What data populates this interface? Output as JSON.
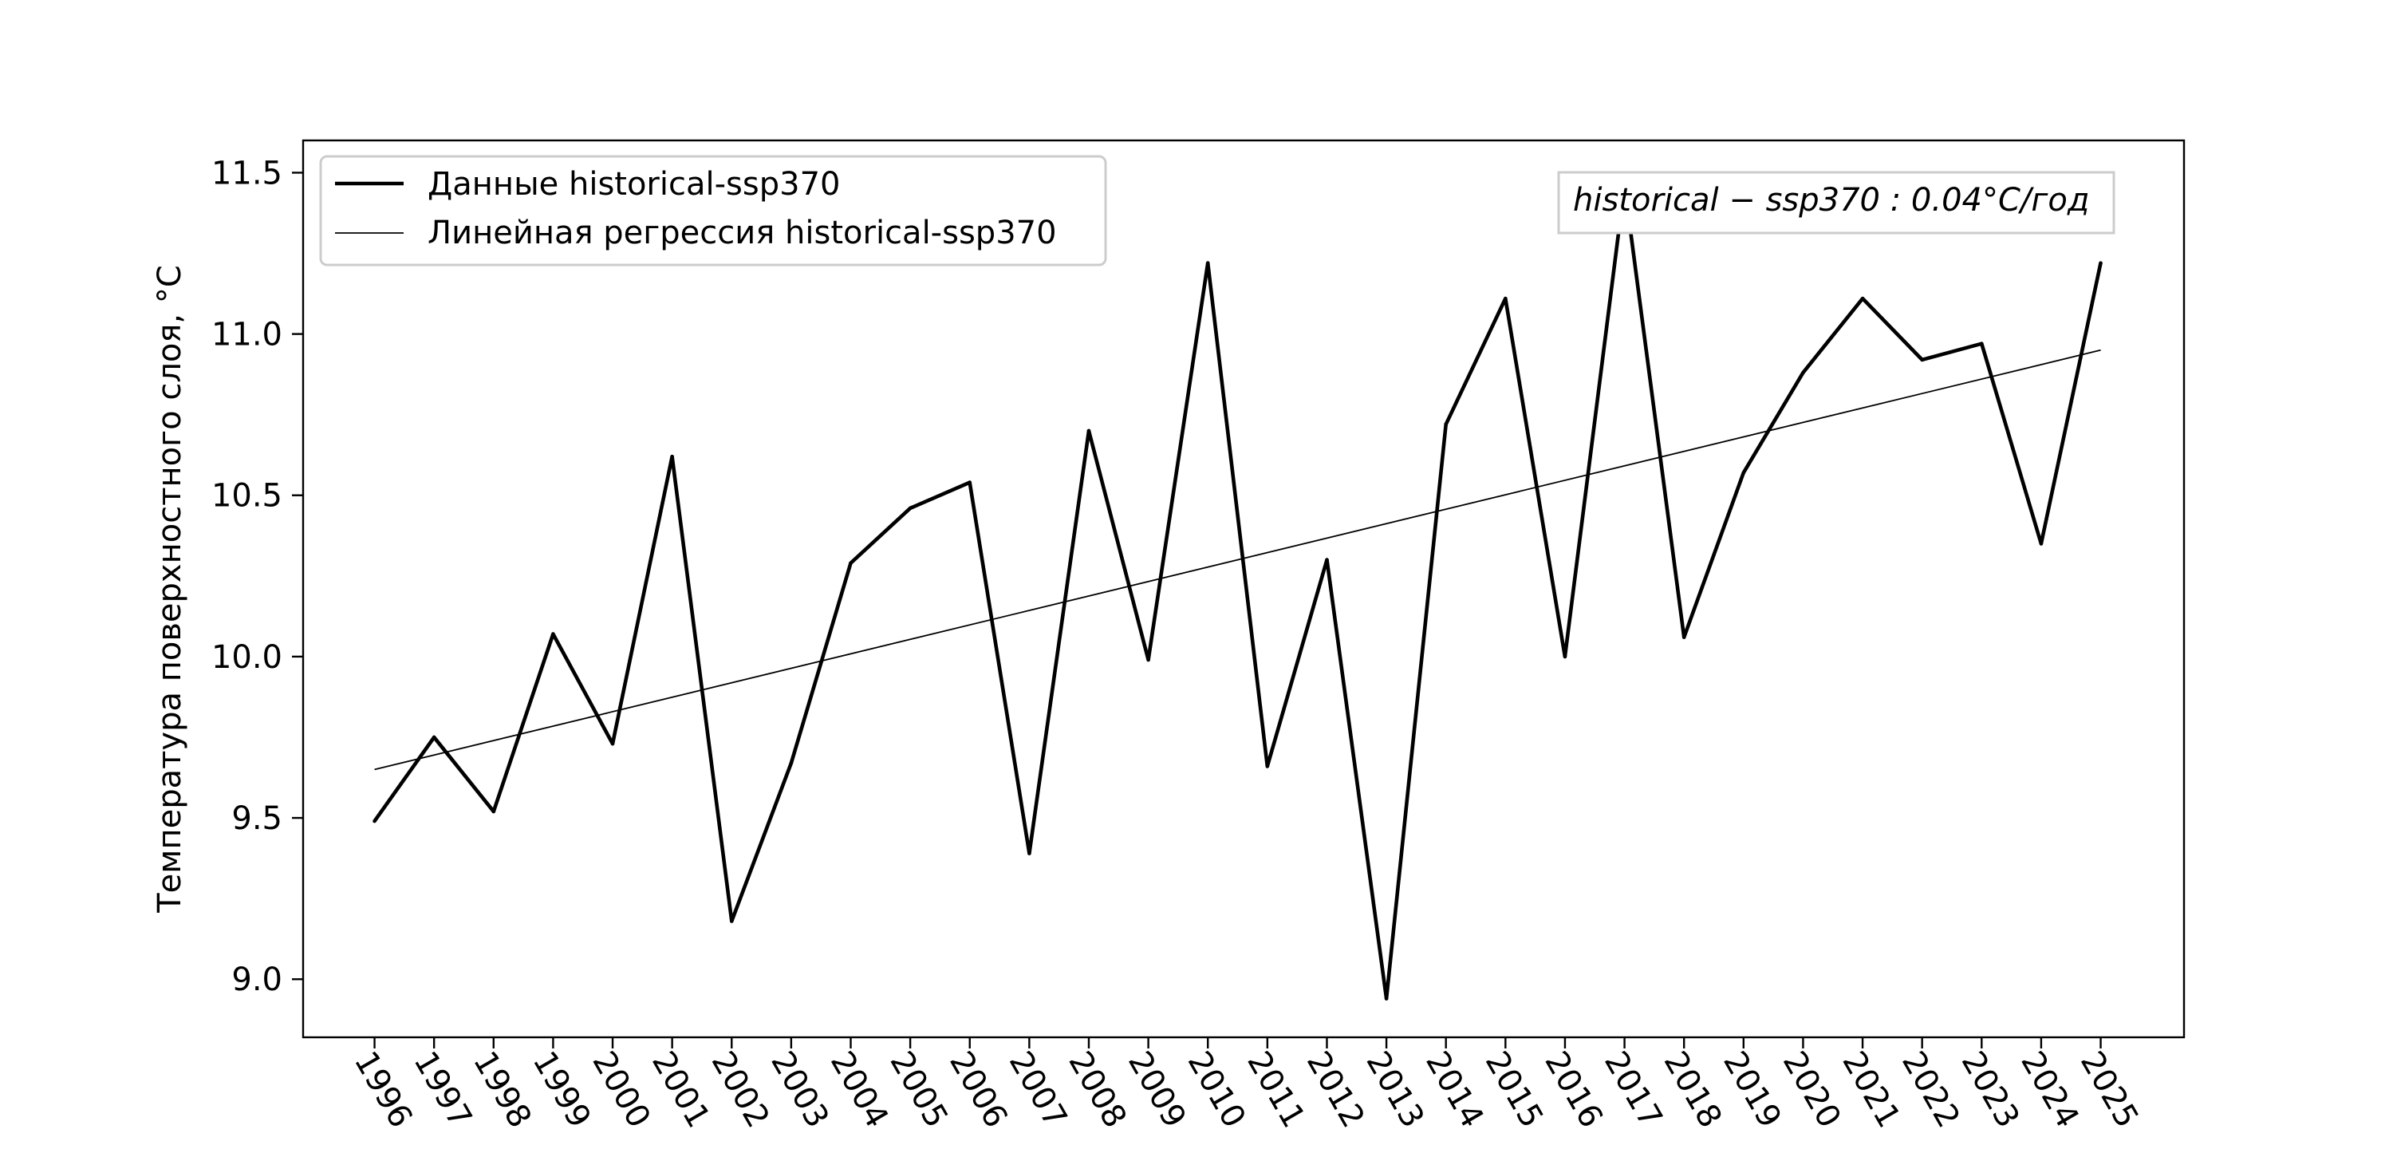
{
  "chart_data": {
    "type": "line",
    "x": [
      1996,
      1997,
      1998,
      1999,
      2000,
      2001,
      2002,
      2003,
      2004,
      2005,
      2006,
      2007,
      2008,
      2009,
      2010,
      2011,
      2012,
      2013,
      2014,
      2015,
      2016,
      2017,
      2018,
      2019,
      2020,
      2021,
      2022,
      2023,
      2024,
      2025
    ],
    "xticklabels": [
      "1996",
      "1997",
      "1998",
      "1999",
      "2000",
      "2001",
      "2002",
      "2003",
      "2004",
      "2005",
      "2006",
      "2007",
      "2008",
      "2009",
      "2010",
      "2011",
      "2012",
      "2013",
      "2014",
      "2015",
      "2016",
      "2017",
      "2018",
      "2019",
      "2020",
      "2021",
      "2022",
      "2023",
      "2024",
      "2025"
    ],
    "series": [
      {
        "name": "Данные historical-ssp370",
        "values": [
          9.49,
          9.75,
          9.52,
          10.07,
          9.73,
          10.62,
          9.18,
          9.67,
          10.29,
          10.46,
          10.54,
          9.39,
          10.7,
          9.99,
          11.22,
          9.66,
          10.3,
          8.94,
          10.72,
          11.11,
          10.0,
          11.46,
          10.06,
          10.57,
          10.88,
          11.11,
          10.92,
          10.97,
          10.35,
          11.22
        ],
        "color": "#000000"
      },
      {
        "name": "Линейная регрессия historical-ssp370",
        "values": [
          9.65,
          10.95
        ],
        "x": [
          1996,
          2025
        ],
        "color": "#000000"
      }
    ],
    "ylabel": "Температура поверхностного слоя, °C",
    "xlabel": "",
    "yticks": [
      "9.0",
      "9.5",
      "10.0",
      "10.5",
      "11.0",
      "11.5"
    ],
    "ytick_values": [
      9.0,
      9.5,
      10.0,
      10.5,
      11.0,
      11.5
    ],
    "ylim": [
      8.82,
      11.6
    ],
    "xlim": [
      1994.8,
      2026.4
    ],
    "legend_position": "top-left",
    "annotation": "historical − ssp370 : 0.04°C/год",
    "grid": false
  }
}
